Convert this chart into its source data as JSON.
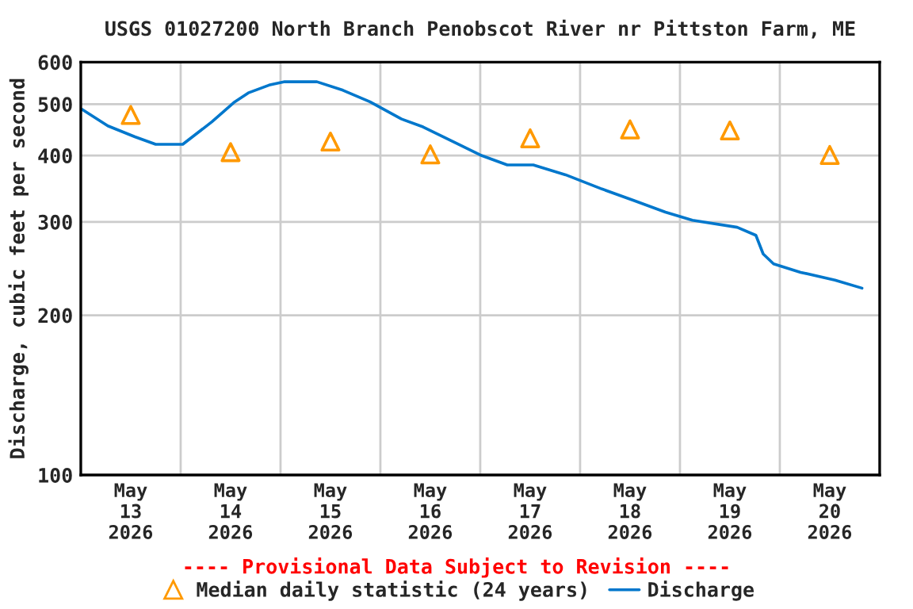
{
  "chart_data": {
    "type": "line",
    "title": "USGS 01027200 North Branch Penobscot River nr Pittston Farm, ME",
    "ylabel": "Discharge, cubic feet per second",
    "annotations": [
      "---- Provisional Data Subject to Revision ----"
    ],
    "log": true,
    "grid": true,
    "legend": "bottom",
    "xlim": [
      "2026-05-13T00:00",
      "2026-05-21T00:00"
    ],
    "xticks": [
      {
        "value": "2026-05-13T12:00",
        "label": "May\n13\n2026"
      },
      {
        "value": "2026-05-14T00:00",
        "label": null
      },
      {
        "value": "2026-05-14T12:00",
        "label": "May\n14\n2026"
      },
      {
        "value": "2026-05-15T00:00",
        "label": null
      },
      {
        "value": "2026-05-15T12:00",
        "label": "May\n15\n2026"
      },
      {
        "value": "2026-05-16T00:00",
        "label": null
      },
      {
        "value": "2026-05-16T12:00",
        "label": "May\n16\n2026"
      },
      {
        "value": "2026-05-17T00:00",
        "label": null
      },
      {
        "value": "2026-05-17T12:00",
        "label": "May\n17\n2026"
      },
      {
        "value": "2026-05-18T00:00",
        "label": null
      },
      {
        "value": "2026-05-18T12:00",
        "label": "May\n18\n2026"
      },
      {
        "value": "2026-05-19T00:00",
        "label": null
      },
      {
        "value": "2026-05-19T12:00",
        "label": "May\n19\n2026"
      },
      {
        "value": "2026-05-20T00:00",
        "label": null
      },
      {
        "value": "2026-05-20T12:00",
        "label": "May\n20\n2026"
      }
    ],
    "ylim": [
      100,
      600
    ],
    "yticks": [
      100,
      200,
      300,
      400,
      500,
      600
    ],
    "series": [
      {
        "name": "Median daily statistic (24 years)",
        "type": "scatter",
        "marker": "triangle",
        "color": "#ff9900",
        "x": [
          "2026-05-13T12:00",
          "2026-05-14T12:00",
          "2026-05-15T12:00",
          "2026-05-16T12:00",
          "2026-05-17T12:00",
          "2026-05-18T12:00",
          "2026-05-19T12:00",
          "2026-05-20T12:00"
        ],
        "values": [
          477,
          406,
          425,
          402,
          431,
          448,
          446,
          401
        ]
      },
      {
        "name": "Discharge",
        "marker": "none",
        "color": "#0077cc",
        "x": [
          "2026-05-13T00:15",
          "2026-05-13T06:30",
          "2026-05-13T13:00",
          "2026-05-13T18:00",
          "2026-05-14T00:30",
          "2026-05-14T07:30",
          "2026-05-14T13:00",
          "2026-05-14T16:15",
          "2026-05-14T21:15",
          "2026-05-15T01:00",
          "2026-05-15T08:45",
          "2026-05-15T15:00",
          "2026-05-15T21:30",
          "2026-05-16T05:00",
          "2026-05-16T10:15",
          "2026-05-16T18:45",
          "2026-05-17T00:00",
          "2026-05-17T06:30",
          "2026-05-17T12:45",
          "2026-05-17T20:30",
          "2026-05-18T05:15",
          "2026-05-18T13:00",
          "2026-05-18T20:30",
          "2026-05-19T03:00",
          "2026-05-19T13:45",
          "2026-05-19T18:15",
          "2026-05-19T20:00",
          "2026-05-19T22:30",
          "2026-05-20T05:00",
          "2026-05-20T13:15",
          "2026-05-20T19:45"
        ],
        "values": [
          489,
          455,
          434,
          420,
          420,
          463,
          505,
          525,
          543,
          551,
          551,
          531,
          505,
          469,
          453,
          420,
          401,
          384,
          384,
          368,
          346,
          329,
          313,
          302,
          293,
          283,
          261,
          250,
          241,
          233,
          225
        ]
      }
    ]
  }
}
